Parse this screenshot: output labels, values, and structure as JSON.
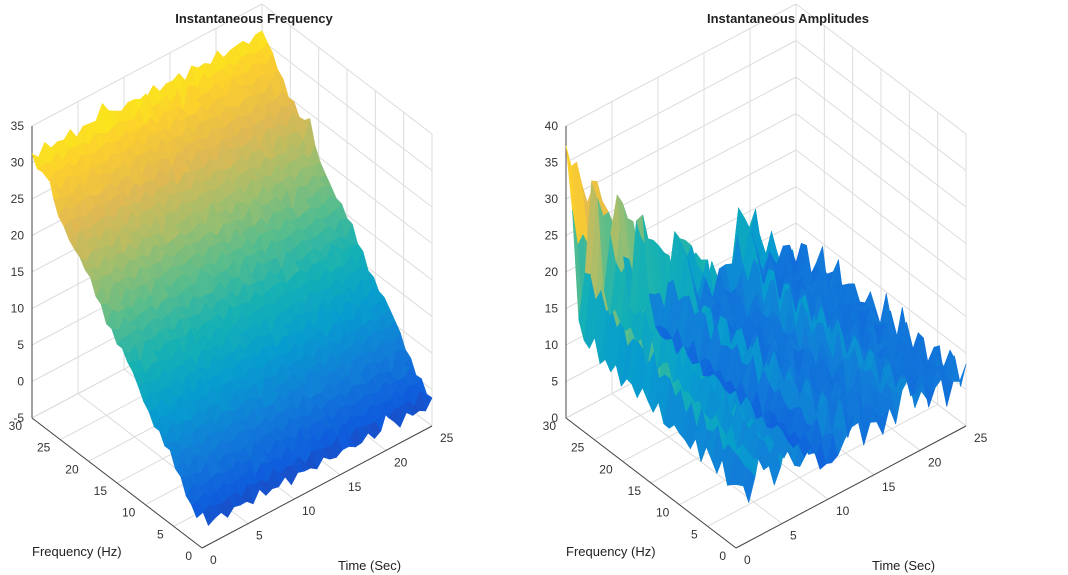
{
  "colors": {
    "colormap": "parula",
    "grid": "#dcdcdc",
    "axis": "#444444"
  },
  "chart_data": [
    {
      "type": "surface",
      "title": "Instantaneous Frequency",
      "xlabel": "Time (Sec)",
      "ylabel": "Frequency (Hz)",
      "zlabel": "",
      "xlim": [
        0,
        25
      ],
      "ylim": [
        0,
        30
      ],
      "zlim": [
        -5,
        35
      ],
      "xticks": [
        "0",
        "5",
        "10",
        "15",
        "20",
        "25"
      ],
      "yticks": [
        "0",
        "5",
        "10",
        "15",
        "20",
        "25",
        "30"
      ],
      "zticks": [
        "-5",
        "0",
        "5",
        "10",
        "15",
        "20",
        "25",
        "30",
        "35"
      ],
      "grid": true,
      "surface_description": "z increases roughly linearly with frequency from about -2 at 0 Hz to about 31 at 30 Hz, nearly constant over time, with small spikes"
    },
    {
      "type": "surface",
      "title": "Instantaneous Amplitudes",
      "xlabel": "Time (Sec)",
      "ylabel": "Frequency (Hz)",
      "zlabel": "",
      "xlim": [
        0,
        25
      ],
      "ylim": [
        0,
        30
      ],
      "zlim": [
        0,
        40
      ],
      "xticks": [
        "0",
        "5",
        "10",
        "15",
        "20",
        "25"
      ],
      "yticks": [
        "0",
        "5",
        "10",
        "15",
        "20",
        "25",
        "30"
      ],
      "zticks": [
        "0",
        "5",
        "10",
        "15",
        "20",
        "25",
        "30",
        "35",
        "40"
      ],
      "grid": true,
      "ridge_peaks": [
        {
          "time": 0,
          "amplitude": 35
        },
        {
          "time": 3,
          "amplitude": 30
        },
        {
          "time": 5.5,
          "amplitude": 24
        },
        {
          "time": 8,
          "amplitude": 20
        },
        {
          "time": 12,
          "amplitude": 15
        },
        {
          "time": 19,
          "amplitude": 10
        }
      ]
    }
  ]
}
